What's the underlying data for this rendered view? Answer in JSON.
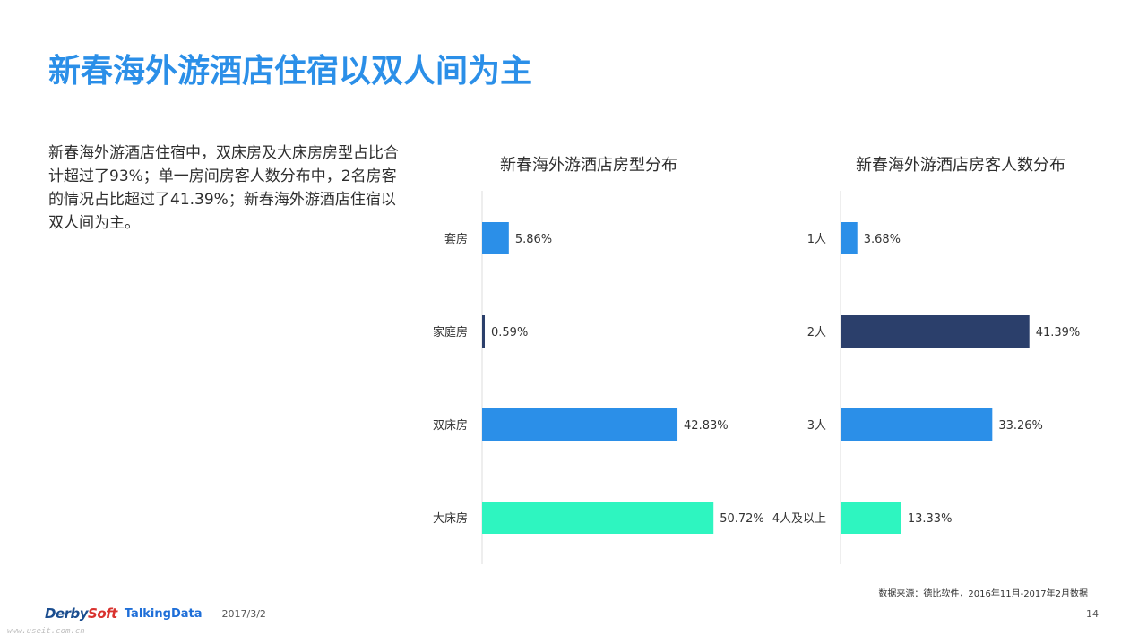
{
  "title": "新春海外游酒店住宿以双人间为主",
  "summary": "新春海外游酒店住宿中，双床房及大床房房型占比合计超过了93%；单一房间房客人数分布中，2名房客的情况占比超过了41.39%；新春海外游酒店住宿以双人间为主。",
  "chart_data": [
    {
      "type": "bar",
      "orientation": "horizontal",
      "title": "新春海外游酒店房型分布",
      "categories": [
        "套房",
        "家庭房",
        "双床房",
        "大床房"
      ],
      "values": [
        5.86,
        0.59,
        42.83,
        50.72
      ],
      "value_labels": [
        "5.86%",
        "0.59%",
        "42.83%",
        "50.72%"
      ],
      "colors": [
        "#2b8fe8",
        "#2b3f6b",
        "#2b8fe8",
        "#2ef5c0"
      ],
      "xlim": [
        0,
        55
      ],
      "grid": false,
      "axis_line": true
    },
    {
      "type": "bar",
      "orientation": "horizontal",
      "title": "新春海外游酒店房客人数分布",
      "categories": [
        "1人",
        "2人",
        "3人",
        "4人及以上"
      ],
      "values": [
        3.68,
        41.39,
        33.26,
        13.33
      ],
      "value_labels": [
        "3.68%",
        "41.39%",
        "33.26%",
        "13.33%"
      ],
      "colors": [
        "#2b8fe8",
        "#2b3f6b",
        "#2b8fe8",
        "#2ef5c0"
      ],
      "xlim": [
        0,
        55
      ],
      "grid": false,
      "axis_line": true
    }
  ],
  "source": "数据来源：德比软件，2016年11月-2017年2月数据",
  "footer": {
    "logo_derby": "Derby",
    "logo_soft": "Soft",
    "logo_talkingdata": "TalkingData",
    "date": "2017/3/2",
    "page_number": "14",
    "watermark": "www.useit.com.cn"
  }
}
